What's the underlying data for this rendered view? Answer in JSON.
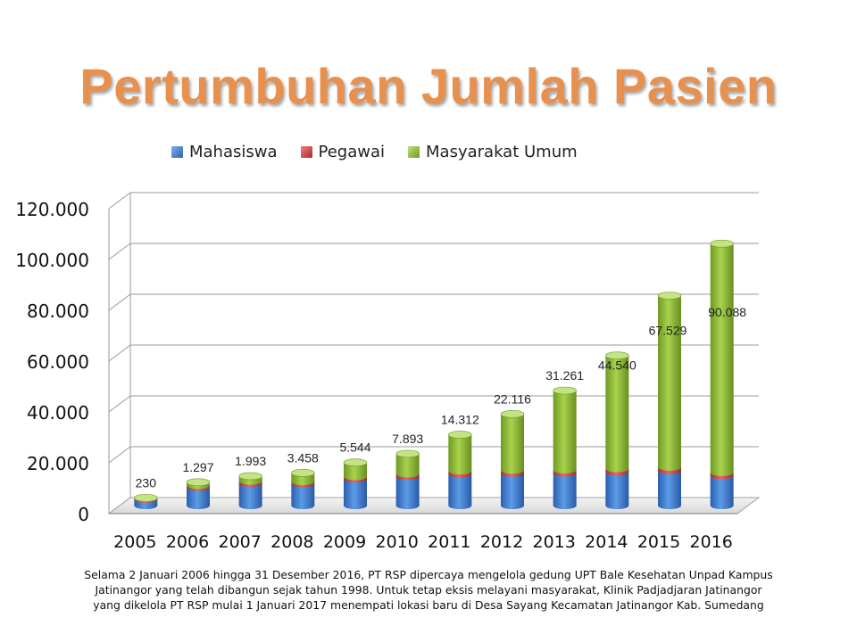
{
  "title": "Pertumbuhan Jumlah Pasien",
  "legend": [
    {
      "label": "Mahasiswa",
      "color": "#3A78C8"
    },
    {
      "label": "Pegawai",
      "color": "#D24040"
    },
    {
      "label": "Masyarakat Umum",
      "color": "#8DB43A"
    }
  ],
  "chart_data": {
    "type": "bar",
    "stacked": true,
    "three_d": true,
    "categories": [
      "2005",
      "2006",
      "2007",
      "2008",
      "2009",
      "2010",
      "2011",
      "2012",
      "2013",
      "2014",
      "2015",
      "2016"
    ],
    "series": [
      {
        "name": "Mahasiswa",
        "color": "#3A78C8",
        "values": [
          2500,
          7200,
          8800,
          8600,
          10500,
          11500,
          12500,
          12800,
          12800,
          13300,
          13800,
          11800
        ]
      },
      {
        "name": "Pegawai",
        "color": "#D24040",
        "values": [
          300,
          700,
          800,
          800,
          900,
          1000,
          1100,
          1100,
          1200,
          1200,
          1300,
          1200
        ]
      },
      {
        "name": "Masyarakat Umum",
        "color": "#8DB43A",
        "values": [
          230,
          1297,
          1993,
          3458,
          5544,
          7893,
          14312,
          22116,
          31261,
          44540,
          67529,
          90088
        ]
      }
    ],
    "data_labels": [
      "230",
      "1.297",
      "1.993",
      "3.458",
      "5.544",
      "7.893",
      "14.312",
      "22.116",
      "31.261",
      "44.540",
      "67.529",
      "90.088"
    ],
    "ylim": [
      0,
      120000
    ],
    "yticks": [
      "0",
      "20.000",
      "40.000",
      "60.000",
      "80.000",
      "100.000",
      "120.000"
    ],
    "grid": true,
    "legend_position": "top"
  },
  "caption": [
    "Selama 2 Januari 2006 hingga 31 Desember  2016, PT RSP dipercaya mengelola gedung UPT Bale Kesehatan Unpad Kampus",
    "Jatinangor yang telah dibangun sejak tahun 1998. Untuk tetap eksis melayani masyarakat, Klinik Padjadjaran Jatinangor",
    "yang dikelola PT RSP mulai 1  Januari 2017 menempati lokasi baru di Desa Sayang Kecamatan Jatinangor Kab. Sumedang"
  ]
}
